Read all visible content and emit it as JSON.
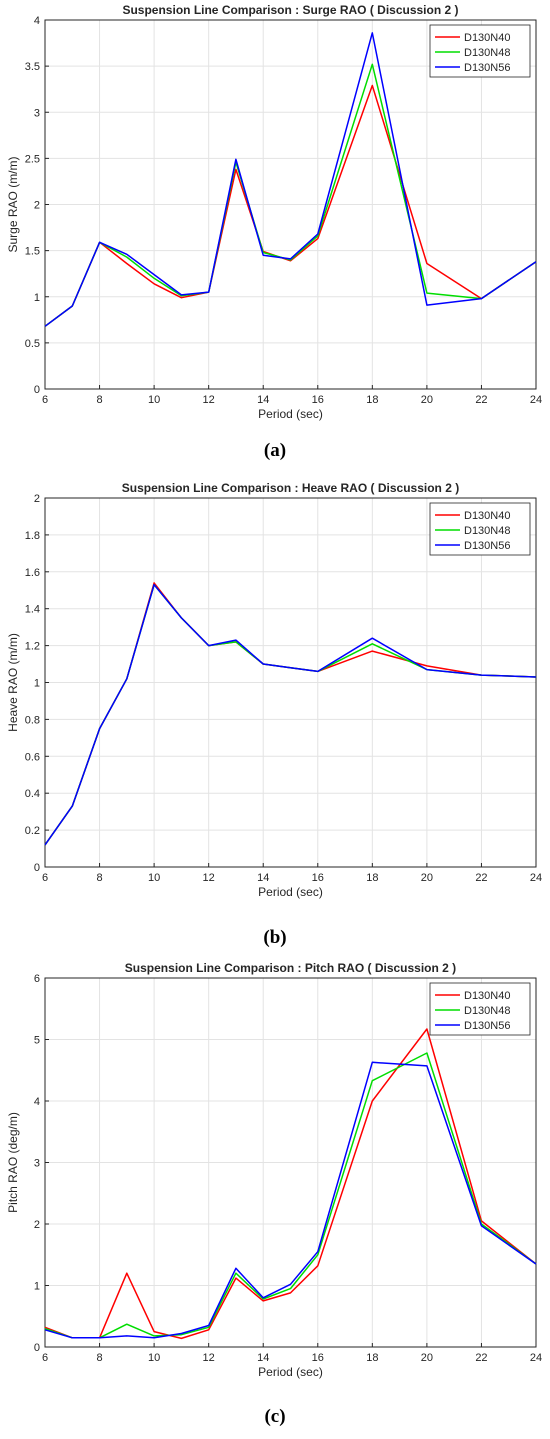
{
  "chart_data": [
    {
      "type": "line",
      "title": "Suspension Line Comparison : Surge RAO ( Discussion 2 )",
      "xlabel": "Period (sec)",
      "ylabel": "Surge RAO (m/m)",
      "xlim": [
        6,
        24
      ],
      "ylim": [
        0,
        4
      ],
      "xticks": [
        "6",
        "8",
        "10",
        "12",
        "14",
        "16",
        "18",
        "20",
        "22",
        "24"
      ],
      "yticks": [
        "0",
        "0.5",
        "1",
        "1.5",
        "2",
        "2.5",
        "3",
        "3.5",
        "4"
      ],
      "grid": true,
      "legend_position": "top-right",
      "caption": "(a)",
      "x": [
        6,
        7,
        8,
        9,
        10,
        11,
        12,
        13,
        14,
        15,
        16,
        18,
        20,
        22,
        24
      ],
      "series": [
        {
          "name": "D130N40",
          "color": "#ff0000",
          "values": [
            0.68,
            0.9,
            1.59,
            1.36,
            1.14,
            0.99,
            1.05,
            2.38,
            1.49,
            1.39,
            1.63,
            3.29,
            1.36,
            0.98,
            1.38
          ]
        },
        {
          "name": "D130N48",
          "color": "#00dd00",
          "values": [
            0.68,
            0.9,
            1.59,
            1.43,
            1.2,
            1.01,
            1.05,
            2.46,
            1.48,
            1.4,
            1.66,
            3.52,
            1.04,
            0.98,
            1.38
          ]
        },
        {
          "name": "D130N56",
          "color": "#0000ff",
          "values": [
            0.68,
            0.9,
            1.59,
            1.46,
            1.24,
            1.02,
            1.05,
            2.49,
            1.45,
            1.41,
            1.68,
            3.86,
            0.91,
            0.98,
            1.38
          ]
        }
      ]
    },
    {
      "type": "line",
      "title": "Suspension Line Comparison : Heave RAO ( Discussion 2 )",
      "xlabel": "Period (sec)",
      "ylabel": "Heave RAO (m/m)",
      "xlim": [
        6,
        24
      ],
      "ylim": [
        0,
        2
      ],
      "xticks": [
        "6",
        "8",
        "10",
        "12",
        "14",
        "16",
        "18",
        "20",
        "22",
        "24"
      ],
      "yticks": [
        "0",
        "0.2",
        "0.4",
        "0.6",
        "0.8",
        "1",
        "1.2",
        "1.4",
        "1.6",
        "1.8",
        "2"
      ],
      "grid": true,
      "legend_position": "top-right",
      "caption": "(b)",
      "x": [
        6,
        7,
        8,
        9,
        10,
        11,
        12,
        13,
        14,
        15,
        16,
        18,
        20,
        22,
        24
      ],
      "series": [
        {
          "name": "D130N40",
          "color": "#ff0000",
          "values": [
            0.12,
            0.33,
            0.75,
            1.02,
            1.54,
            1.35,
            1.2,
            1.22,
            1.1,
            1.08,
            1.06,
            1.17,
            1.09,
            1.04,
            1.03
          ]
        },
        {
          "name": "D130N48",
          "color": "#00dd00",
          "values": [
            0.12,
            0.33,
            0.75,
            1.02,
            1.53,
            1.35,
            1.2,
            1.22,
            1.1,
            1.08,
            1.06,
            1.21,
            1.07,
            1.04,
            1.03
          ]
        },
        {
          "name": "D130N56",
          "color": "#0000ff",
          "values": [
            0.12,
            0.33,
            0.75,
            1.02,
            1.53,
            1.35,
            1.2,
            1.23,
            1.1,
            1.08,
            1.06,
            1.24,
            1.07,
            1.04,
            1.03
          ]
        }
      ]
    },
    {
      "type": "line",
      "title": "Suspension Line Comparison : Pitch RAO ( Discussion 2 )",
      "xlabel": "Period (sec)",
      "ylabel": "Pitch RAO (deg/m)",
      "xlim": [
        6,
        24
      ],
      "ylim": [
        0,
        6
      ],
      "xticks": [
        "6",
        "8",
        "10",
        "12",
        "14",
        "16",
        "18",
        "20",
        "22",
        "24"
      ],
      "yticks": [
        "0",
        "1",
        "2",
        "3",
        "4",
        "5",
        "6"
      ],
      "grid": true,
      "legend_position": "top-right",
      "caption": "(c)",
      "x": [
        6,
        7,
        8,
        9,
        10,
        11,
        12,
        13,
        14,
        15,
        16,
        18,
        20,
        22,
        24
      ],
      "series": [
        {
          "name": "D130N40",
          "color": "#ff0000",
          "values": [
            0.32,
            0.15,
            0.15,
            1.2,
            0.25,
            0.14,
            0.28,
            1.12,
            0.75,
            0.88,
            1.32,
            4.0,
            5.17,
            2.05,
            1.35
          ]
        },
        {
          "name": "D130N48",
          "color": "#00dd00",
          "values": [
            0.3,
            0.15,
            0.15,
            0.37,
            0.18,
            0.2,
            0.32,
            1.2,
            0.78,
            0.95,
            1.5,
            4.33,
            4.78,
            2.0,
            1.35
          ]
        },
        {
          "name": "D130N56",
          "color": "#0000ff",
          "values": [
            0.28,
            0.15,
            0.15,
            0.18,
            0.15,
            0.22,
            0.35,
            1.28,
            0.8,
            1.02,
            1.55,
            4.63,
            4.57,
            1.97,
            1.35
          ]
        }
      ]
    }
  ]
}
